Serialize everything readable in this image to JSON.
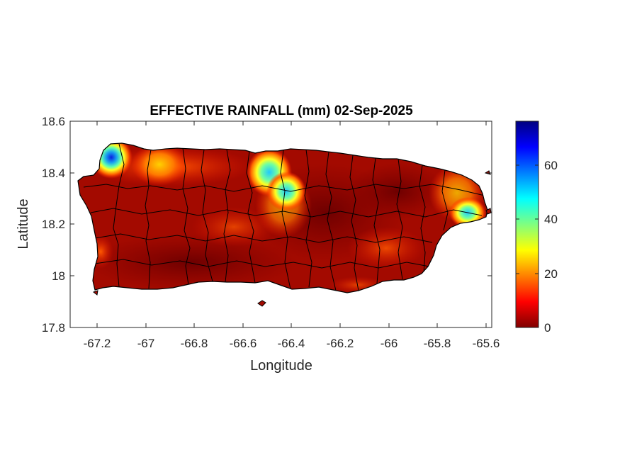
{
  "map": {
    "title": "EFFECTIVE RAINFALL (mm) 02-Sep-2025",
    "xlabel": "Longitude",
    "ylabel": "Latitude",
    "x_ticks": [
      "-67.2",
      "-67",
      "-66.8",
      "-66.6",
      "-66.4",
      "-66.2",
      "-66",
      "-65.8",
      "-65.6"
    ],
    "y_ticks": [
      "18.6",
      "18.4",
      "18.2",
      "18",
      "17.8"
    ],
    "colorbar_ticks": [
      "60",
      "40",
      "20",
      "0"
    ],
    "colormap": "jet",
    "land_base_color": "#a60a00",
    "border_color": "#000000"
  },
  "chart_data": {
    "type": "heatmap",
    "title": "EFFECTIVE RAINFALL (mm) 02-Sep-2025",
    "xlabel": "Longitude",
    "ylabel": "Latitude",
    "xlim": [
      -67.3,
      -65.58
    ],
    "ylim": [
      17.8,
      18.6
    ],
    "color_range": [
      0,
      76
    ],
    "colorbar_ticks": [
      0,
      20,
      40,
      60
    ],
    "hotspots": [
      {
        "lon": -67.14,
        "lat": 18.46,
        "value": 72
      },
      {
        "lon": -66.93,
        "lat": 18.43,
        "value": 22
      },
      {
        "lon": -66.49,
        "lat": 18.4,
        "value": 55
      },
      {
        "lon": -66.43,
        "lat": 18.35,
        "value": 45
      },
      {
        "lon": -65.69,
        "lat": 18.25,
        "value": 45
      },
      {
        "lon": -65.72,
        "lat": 18.33,
        "value": 15
      },
      {
        "lon": -67.16,
        "lat": 18.1,
        "value": 18
      },
      {
        "lon": -66.0,
        "lat": 18.1,
        "value": 10
      }
    ]
  }
}
